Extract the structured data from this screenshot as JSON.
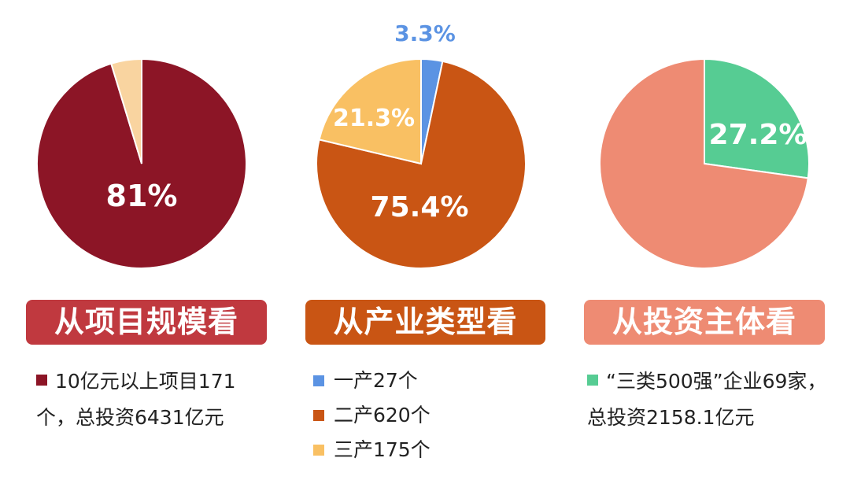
{
  "chart_data": [
    {
      "type": "pie",
      "slices": [
        {
          "value": 81,
          "label": "81%",
          "color": "#8C1526"
        },
        {
          "value": 4,
          "label": "",
          "color": "#F9D4A0"
        }
      ],
      "title": "从项目规模看",
      "title_color": "#C0393F",
      "legend": [
        {
          "color": "#8C1526",
          "text": "10亿元以上项目171个，总投资6431亿元"
        }
      ]
    },
    {
      "type": "pie",
      "slices": [
        {
          "value": 3.3,
          "label": "3.3%",
          "color": "#5B93E3"
        },
        {
          "value": 75.4,
          "label": "75.4%",
          "color": "#C95514"
        },
        {
          "value": 21.3,
          "label": "21.3%",
          "color": "#F9C063"
        }
      ],
      "title": "从产业类型看",
      "title_color": "#C95514",
      "legend": [
        {
          "color": "#5B93E3",
          "text": "一产27个"
        },
        {
          "color": "#C95514",
          "text": "二产620个"
        },
        {
          "color": "#F9C063",
          "text": "三产175个"
        }
      ]
    },
    {
      "type": "pie",
      "slices": [
        {
          "value": 27.2,
          "label": "27.2%",
          "color": "#56CC93"
        },
        {
          "value": 72.8,
          "label": "",
          "color": "#EE8B73"
        }
      ],
      "title": "从投资主体看",
      "title_color": "#EE8B73",
      "legend": [
        {
          "color": "#56CC93",
          "text": "“三类500强”企业69家，总投资2158.1亿元"
        }
      ]
    }
  ]
}
